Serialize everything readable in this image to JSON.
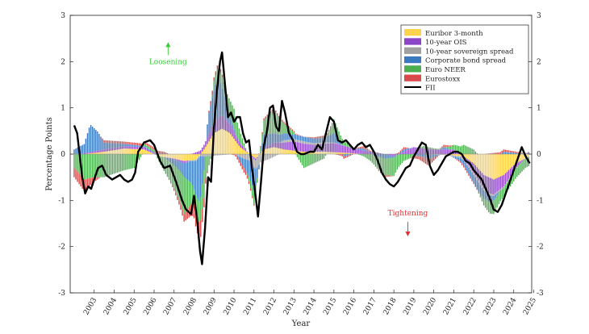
{
  "chart_data": {
    "type": "bar",
    "stacked": true,
    "title": "",
    "xlabel": "Year",
    "ylabel": "Percentage Points",
    "ylim": [
      -3,
      3
    ],
    "xlim": [
      2002.3,
      2025.4
    ],
    "yticks": [
      -3,
      -2,
      -1,
      0,
      1,
      2,
      3
    ],
    "yticks_right": [
      -3,
      -2,
      -1,
      0,
      1,
      2,
      3
    ],
    "xticks": [
      "2003",
      "2004",
      "2005",
      "2006",
      "2007",
      "2008",
      "2009",
      "2010",
      "2011",
      "2012",
      "2013",
      "2014",
      "2015",
      "2016",
      "2017",
      "2018",
      "2019",
      "2020",
      "2021",
      "2022",
      "2023",
      "2024",
      "2025"
    ],
    "legend_position": "top-right",
    "series": [
      {
        "name": "Euribor 3-month",
        "color": "#ffd24d",
        "points": [
          [
            2002.5,
            0.0
          ],
          [
            2003.0,
            0.0
          ],
          [
            2004.0,
            0.05
          ],
          [
            2005.0,
            0.12
          ],
          [
            2006.0,
            0.1
          ],
          [
            2006.8,
            -0.05
          ],
          [
            2007.5,
            -0.1
          ],
          [
            2008.0,
            -0.15
          ],
          [
            2008.6,
            -0.12
          ],
          [
            2009.0,
            0.1
          ],
          [
            2009.5,
            0.45
          ],
          [
            2009.9,
            0.55
          ],
          [
            2010.3,
            0.45
          ],
          [
            2010.8,
            0.15
          ],
          [
            2011.3,
            0.0
          ],
          [
            2011.6,
            -0.1
          ],
          [
            2012.0,
            0.1
          ],
          [
            2012.5,
            0.15
          ],
          [
            2013.0,
            0.1
          ],
          [
            2014.0,
            0.05
          ],
          [
            2015.0,
            0.05
          ],
          [
            2016.0,
            0.03
          ],
          [
            2017.0,
            0.0
          ],
          [
            2018.0,
            0.0
          ],
          [
            2019.0,
            0.0
          ],
          [
            2020.0,
            0.0
          ],
          [
            2021.0,
            0.0
          ],
          [
            2022.0,
            -0.05
          ],
          [
            2022.5,
            -0.2
          ],
          [
            2023.0,
            -0.45
          ],
          [
            2023.5,
            -0.55
          ],
          [
            2024.0,
            -0.45
          ],
          [
            2024.6,
            -0.2
          ],
          [
            2025.3,
            -0.05
          ]
        ]
      },
      {
        "name": "10-year OIS",
        "color": "#8e44c9",
        "points": [
          [
            2002.5,
            0.0
          ],
          [
            2004.0,
            0.05
          ],
          [
            2006.0,
            0.05
          ],
          [
            2008.0,
            -0.05
          ],
          [
            2009.0,
            0.1
          ],
          [
            2009.8,
            0.3
          ],
          [
            2010.5,
            0.15
          ],
          [
            2011.5,
            -0.05
          ],
          [
            2012.5,
            0.1
          ],
          [
            2013.5,
            0.2
          ],
          [
            2014.5,
            0.15
          ],
          [
            2015.5,
            0.2
          ],
          [
            2016.5,
            0.1
          ],
          [
            2017.5,
            0.05
          ],
          [
            2018.5,
            -0.05
          ],
          [
            2019.5,
            0.15
          ],
          [
            2020.5,
            0.1
          ],
          [
            2021.5,
            0.1
          ],
          [
            2022.5,
            -0.2
          ],
          [
            2023.3,
            -0.35
          ],
          [
            2024.0,
            -0.25
          ],
          [
            2025.3,
            0.05
          ]
        ]
      },
      {
        "name": "10-year sovereign spread",
        "color": "#a0a0a0",
        "points": [
          [
            2002.5,
            0.0
          ],
          [
            2008.0,
            0.0
          ],
          [
            2009.0,
            -0.05
          ],
          [
            2010.5,
            0.0
          ],
          [
            2011.0,
            -0.1
          ],
          [
            2011.7,
            -0.2
          ],
          [
            2012.3,
            -0.1
          ],
          [
            2013.0,
            0.05
          ],
          [
            2014.0,
            0.05
          ],
          [
            2016.0,
            0.0
          ],
          [
            2020.0,
            0.0
          ],
          [
            2022.5,
            -0.05
          ],
          [
            2025.3,
            0.0
          ]
        ]
      },
      {
        "name": "Corporate bond spread",
        "color": "#3a78c0",
        "points": [
          [
            2002.5,
            0.1
          ],
          [
            2003.0,
            0.2
          ],
          [
            2003.3,
            0.6
          ],
          [
            2003.7,
            0.4
          ],
          [
            2004.0,
            0.15
          ],
          [
            2005.0,
            0.05
          ],
          [
            2007.0,
            0.0
          ],
          [
            2007.8,
            -0.2
          ],
          [
            2008.4,
            -0.5
          ],
          [
            2008.8,
            -1.0
          ],
          [
            2009.2,
            0.4
          ],
          [
            2009.7,
            0.9
          ],
          [
            2010.2,
            0.2
          ],
          [
            2011.0,
            -0.2
          ],
          [
            2011.5,
            -0.5
          ],
          [
            2012.0,
            0.3
          ],
          [
            2012.5,
            0.2
          ],
          [
            2013.5,
            0.1
          ],
          [
            2015.0,
            0.1
          ],
          [
            2015.5,
            0.2
          ],
          [
            2016.0,
            -0.05
          ],
          [
            2017.0,
            0.05
          ],
          [
            2018.0,
            -0.1
          ],
          [
            2019.0,
            0.05
          ],
          [
            2020.3,
            -0.1
          ],
          [
            2021.0,
            0.05
          ],
          [
            2022.0,
            -0.1
          ],
          [
            2022.7,
            -0.2
          ],
          [
            2023.3,
            -0.15
          ],
          [
            2024.0,
            0.05
          ],
          [
            2025.3,
            0.0
          ]
        ]
      },
      {
        "name": "Euro NEER",
        "color": "#4caf50",
        "points": [
          [
            2002.5,
            -0.3
          ],
          [
            2003.0,
            -0.55
          ],
          [
            2003.5,
            -0.5
          ],
          [
            2004.0,
            -0.5
          ],
          [
            2005.0,
            -0.35
          ],
          [
            2005.5,
            -0.3
          ],
          [
            2006.0,
            0.05
          ],
          [
            2006.5,
            0.05
          ],
          [
            2007.0,
            -0.3
          ],
          [
            2007.5,
            -0.5
          ],
          [
            2008.0,
            -0.8
          ],
          [
            2008.5,
            -0.3
          ],
          [
            2009.0,
            -0.6
          ],
          [
            2009.5,
            0.2
          ],
          [
            2010.0,
            0.25
          ],
          [
            2010.5,
            0.45
          ],
          [
            2011.0,
            0.1
          ],
          [
            2011.5,
            -0.3
          ],
          [
            2012.0,
            0.3
          ],
          [
            2012.5,
            0.5
          ],
          [
            2013.0,
            0.2
          ],
          [
            2013.5,
            0.05
          ],
          [
            2014.0,
            -0.3
          ],
          [
            2015.0,
            -0.1
          ],
          [
            2015.5,
            0.3
          ],
          [
            2016.0,
            0.1
          ],
          [
            2017.0,
            -0.05
          ],
          [
            2018.0,
            -0.35
          ],
          [
            2018.5,
            -0.4
          ],
          [
            2019.0,
            -0.15
          ],
          [
            2020.0,
            0.05
          ],
          [
            2021.0,
            0.0
          ],
          [
            2022.0,
            0.2
          ],
          [
            2022.5,
            0.1
          ],
          [
            2023.0,
            -0.15
          ],
          [
            2023.5,
            -0.3
          ],
          [
            2024.0,
            -0.2
          ],
          [
            2025.3,
            -0.2
          ]
        ]
      },
      {
        "name": "Eurostoxx",
        "color": "#d94a4a",
        "points": [
          [
            2002.5,
            -0.2
          ],
          [
            2003.0,
            -0.25
          ],
          [
            2003.5,
            -0.1
          ],
          [
            2004.0,
            0.05
          ],
          [
            2005.0,
            0.05
          ],
          [
            2006.0,
            0.05
          ],
          [
            2007.0,
            0.05
          ],
          [
            2007.8,
            -0.1
          ],
          [
            2008.8,
            -0.4
          ],
          [
            2009.3,
            0.1
          ],
          [
            2010.0,
            0.05
          ],
          [
            2011.0,
            -0.1
          ],
          [
            2012.0,
            0.05
          ],
          [
            2013.0,
            0.05
          ],
          [
            2014.0,
            0.0
          ],
          [
            2015.0,
            0.05
          ],
          [
            2016.0,
            -0.05
          ],
          [
            2017.0,
            0.05
          ],
          [
            2018.0,
            -0.05
          ],
          [
            2019.0,
            0.05
          ],
          [
            2020.2,
            -0.15
          ],
          [
            2021.0,
            0.05
          ],
          [
            2022.0,
            -0.05
          ],
          [
            2023.0,
            0.0
          ],
          [
            2024.0,
            0.05
          ],
          [
            2025.3,
            0.0
          ]
        ]
      },
      {
        "name": "FII",
        "type": "line",
        "color": "#000000",
        "points": [
          [
            2002.5,
            0.62
          ],
          [
            2002.65,
            0.45
          ],
          [
            2002.9,
            -0.5
          ],
          [
            2003.05,
            -0.85
          ],
          [
            2003.2,
            -0.7
          ],
          [
            2003.35,
            -0.75
          ],
          [
            2003.5,
            -0.55
          ],
          [
            2003.7,
            -0.3
          ],
          [
            2003.9,
            -0.25
          ],
          [
            2004.1,
            -0.45
          ],
          [
            2004.4,
            -0.55
          ],
          [
            2004.6,
            -0.5
          ],
          [
            2004.8,
            -0.45
          ],
          [
            2005.0,
            -0.55
          ],
          [
            2005.2,
            -0.6
          ],
          [
            2005.4,
            -0.55
          ],
          [
            2005.55,
            -0.4
          ],
          [
            2005.7,
            0.05
          ],
          [
            2006.0,
            0.25
          ],
          [
            2006.3,
            0.3
          ],
          [
            2006.5,
            0.2
          ],
          [
            2006.8,
            -0.15
          ],
          [
            2007.0,
            -0.3
          ],
          [
            2007.3,
            -0.25
          ],
          [
            2007.6,
            -0.6
          ],
          [
            2007.9,
            -1.0
          ],
          [
            2008.1,
            -1.2
          ],
          [
            2008.35,
            -1.3
          ],
          [
            2008.5,
            -0.9
          ],
          [
            2008.65,
            -1.4
          ],
          [
            2008.8,
            -2.1
          ],
          [
            2008.9,
            -2.38
          ],
          [
            2009.05,
            -1.6
          ],
          [
            2009.2,
            -0.5
          ],
          [
            2009.35,
            -0.6
          ],
          [
            2009.5,
            0.6
          ],
          [
            2009.65,
            1.4
          ],
          [
            2009.8,
            2.0
          ],
          [
            2009.9,
            2.2
          ],
          [
            2010.05,
            1.5
          ],
          [
            2010.2,
            0.8
          ],
          [
            2010.35,
            0.9
          ],
          [
            2010.5,
            0.7
          ],
          [
            2010.65,
            0.8
          ],
          [
            2010.8,
            0.8
          ],
          [
            2010.95,
            0.45
          ],
          [
            2011.1,
            0.25
          ],
          [
            2011.25,
            0.3
          ],
          [
            2011.4,
            -0.3
          ],
          [
            2011.55,
            -0.8
          ],
          [
            2011.7,
            -1.35
          ],
          [
            2011.85,
            -0.6
          ],
          [
            2012.0,
            0.2
          ],
          [
            2012.15,
            0.5
          ],
          [
            2012.3,
            1.0
          ],
          [
            2012.45,
            1.05
          ],
          [
            2012.6,
            0.6
          ],
          [
            2012.75,
            0.5
          ],
          [
            2012.9,
            1.15
          ],
          [
            2013.05,
            0.9
          ],
          [
            2013.25,
            0.45
          ],
          [
            2013.45,
            0.3
          ],
          [
            2013.65,
            0.05
          ],
          [
            2013.85,
            0.0
          ],
          [
            2014.0,
            0.0
          ],
          [
            2014.3,
            0.05
          ],
          [
            2014.5,
            0.05
          ],
          [
            2014.7,
            0.2
          ],
          [
            2014.9,
            0.1
          ],
          [
            2015.1,
            0.45
          ],
          [
            2015.3,
            0.8
          ],
          [
            2015.5,
            0.7
          ],
          [
            2015.7,
            0.3
          ],
          [
            2015.9,
            0.25
          ],
          [
            2016.1,
            0.3
          ],
          [
            2016.3,
            0.2
          ],
          [
            2016.5,
            0.1
          ],
          [
            2016.7,
            0.2
          ],
          [
            2016.9,
            0.25
          ],
          [
            2017.1,
            0.15
          ],
          [
            2017.3,
            0.2
          ],
          [
            2017.5,
            0.05
          ],
          [
            2017.7,
            -0.15
          ],
          [
            2017.9,
            -0.4
          ],
          [
            2018.1,
            -0.55
          ],
          [
            2018.3,
            -0.65
          ],
          [
            2018.5,
            -0.7
          ],
          [
            2018.7,
            -0.6
          ],
          [
            2018.9,
            -0.45
          ],
          [
            2019.1,
            -0.3
          ],
          [
            2019.3,
            -0.25
          ],
          [
            2019.5,
            -0.05
          ],
          [
            2019.7,
            0.1
          ],
          [
            2019.9,
            0.25
          ],
          [
            2020.1,
            0.2
          ],
          [
            2020.3,
            -0.25
          ],
          [
            2020.5,
            -0.45
          ],
          [
            2020.7,
            -0.35
          ],
          [
            2020.9,
            -0.2
          ],
          [
            2021.1,
            -0.05
          ],
          [
            2021.3,
            0.0
          ],
          [
            2021.5,
            0.05
          ],
          [
            2021.7,
            0.05
          ],
          [
            2021.9,
            0.0
          ],
          [
            2022.1,
            -0.15
          ],
          [
            2022.3,
            -0.2
          ],
          [
            2022.5,
            -0.35
          ],
          [
            2022.7,
            -0.45
          ],
          [
            2022.9,
            -0.55
          ],
          [
            2023.1,
            -0.75
          ],
          [
            2023.3,
            -0.95
          ],
          [
            2023.5,
            -1.2
          ],
          [
            2023.7,
            -1.25
          ],
          [
            2023.9,
            -1.1
          ],
          [
            2024.1,
            -0.85
          ],
          [
            2024.3,
            -0.6
          ],
          [
            2024.5,
            -0.35
          ],
          [
            2024.7,
            -0.1
          ],
          [
            2024.9,
            0.15
          ],
          [
            2025.1,
            -0.05
          ],
          [
            2025.3,
            -0.2
          ]
        ]
      }
    ],
    "annotations": [
      {
        "text": "Loosening",
        "color": "#33cc33",
        "x": 2007.2,
        "y": 2.0,
        "arrow": "up"
      },
      {
        "text": "Tightening",
        "color": "#e03030",
        "x": 2019.2,
        "y": -1.5,
        "arrow": "down"
      }
    ]
  }
}
